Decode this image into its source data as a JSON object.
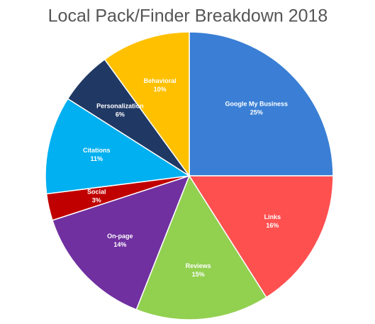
{
  "chart_data": {
    "type": "pie",
    "title": "Local Pack/Finder Breakdown 2018",
    "categories": [
      "Google My Business",
      "Links",
      "Reviews",
      "On-page",
      "Social",
      "Citations",
      "Personalization",
      "Behavioral"
    ],
    "values": [
      25,
      16,
      15,
      14,
      3,
      11,
      6,
      10
    ],
    "value_labels": [
      "25%",
      "16%",
      "15%",
      "14%",
      "3%",
      "11%",
      "6%",
      "10%"
    ],
    "colors": [
      "#3a7fd5",
      "#ff5050",
      "#92d050",
      "#7030a0",
      "#c00000",
      "#00b0f0",
      "#203864",
      "#ffc000"
    ]
  }
}
